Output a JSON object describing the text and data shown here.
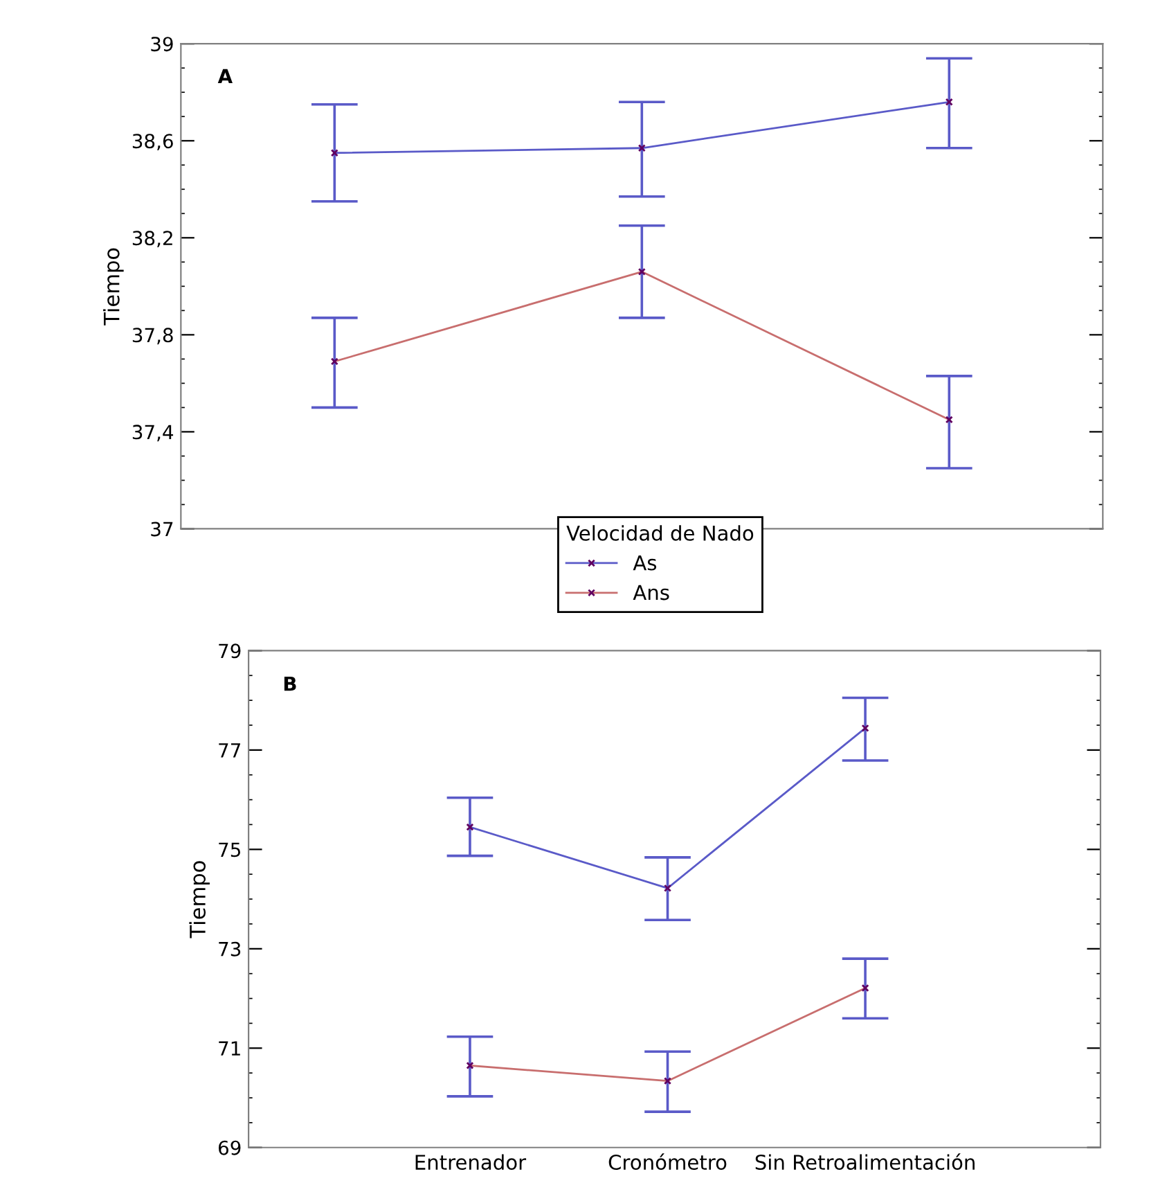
{
  "chart_data": [
    {
      "type": "line",
      "ylabel": "Tiempo",
      "annotations": [
        "A"
      ],
      "categories": [
        null,
        null,
        null
      ],
      "tick_labels": "y",
      "ylim": [
        37,
        39
      ],
      "yticks": [
        37,
        {
          "value": 37.4,
          "label": "37,4"
        },
        {
          "value": 37.8,
          "label": "37,8"
        },
        {
          "value": 38.2,
          "label": "38,2"
        },
        {
          "value": 38.6,
          "label": "38,6"
        },
        39
      ],
      "grid": false,
      "marker": "cross",
      "line_style": "solid",
      "legend": "bottom",
      "legend_title": "Velocidad de Nado",
      "series": [
        {
          "name": "As",
          "color": "#5a5ac8",
          "values": [
            38.55,
            38.57,
            38.76
          ],
          "errors": [
            [
              38.35,
              38.75
            ],
            [
              38.37,
              38.76
            ],
            [
              38.57,
              38.94
            ]
          ]
        },
        {
          "name": "Ans",
          "color": "#c86e6e",
          "values": [
            37.69,
            38.06,
            37.45
          ],
          "errors": [
            [
              37.5,
              37.87
            ],
            [
              37.87,
              38.25
            ],
            [
              37.25,
              37.63
            ]
          ]
        }
      ]
    },
    {
      "type": "line",
      "ylabel": "Tiempo",
      "annotations": [
        "B"
      ],
      "categories": [
        "Entrenador",
        "Cronómetro",
        "Sin Retroalimentación"
      ],
      "ylim": [
        69,
        79
      ],
      "yticks": [
        69,
        71,
        73,
        75,
        77,
        79
      ],
      "grid": false,
      "marker": "cross",
      "line_style": "solid",
      "series": [
        {
          "color": "#5a5ac8",
          "values": [
            75.45,
            74.22,
            77.44
          ],
          "errors": [
            [
              74.87,
              76.04
            ],
            [
              73.58,
              74.84
            ],
            [
              76.79,
              78.05
            ]
          ]
        },
        {
          "color": "#c86e6e",
          "values": [
            70.65,
            70.34,
            72.21
          ],
          "errors": [
            [
              70.03,
              71.23
            ],
            [
              69.72,
              70.93
            ],
            [
              71.6,
              72.8
            ]
          ]
        }
      ]
    }
  ]
}
